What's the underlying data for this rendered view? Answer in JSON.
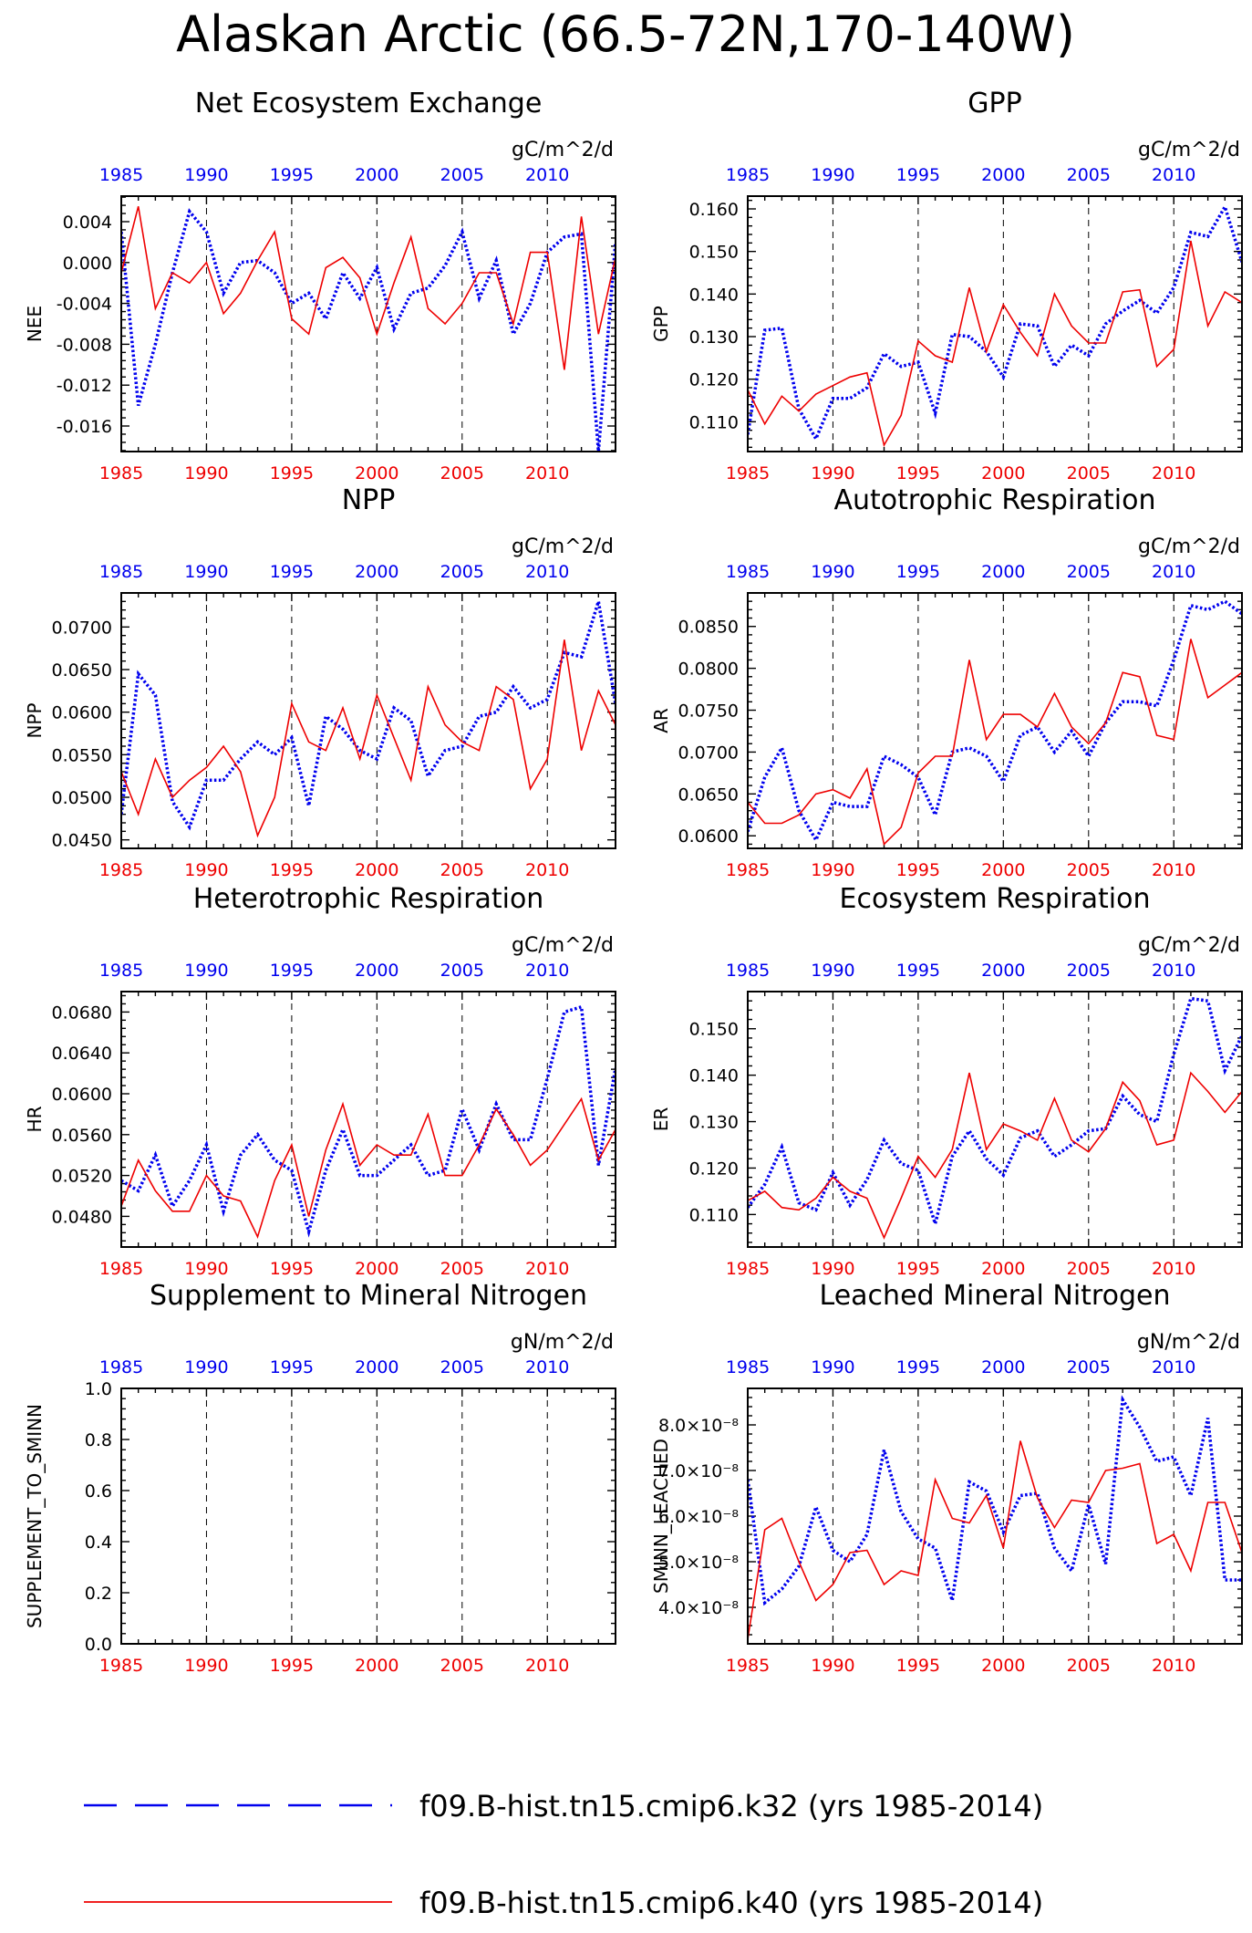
{
  "title": "Alaskan Arctic (66.5-72N,170-140W)",
  "colors": {
    "k32": "#0000ee",
    "k40": "#ee0000",
    "axis": "#000000"
  },
  "legend": [
    {
      "label": "f09.B-hist.tn15.cmip6.k32 (yrs 1985-2014)",
      "color": "#0000ee",
      "style": "dashed"
    },
    {
      "label": "f09.B-hist.tn15.cmip6.k40 (yrs 1985-2014)",
      "color": "#ee0000",
      "style": "solid"
    }
  ],
  "chart_data": [
    {
      "type": "line",
      "title": "Net Ecosystem Exchange",
      "units": "gC/m^2/d",
      "ylabel": "NEE",
      "ylim": [
        -0.0185,
        0.0065
      ],
      "yticks": [
        0.004,
        0.0,
        -0.004,
        -0.008,
        -0.012,
        -0.016
      ],
      "ytick_labels": [
        "0.004",
        "0.000",
        "-0.004",
        "-0.008",
        "-0.012",
        "-0.016"
      ],
      "xlim": [
        1985,
        2014
      ],
      "xticks": [
        1985,
        1990,
        1995,
        2000,
        2005,
        2010
      ],
      "x": [
        1985,
        1986,
        1987,
        1988,
        1989,
        1990,
        1991,
        1992,
        1993,
        1994,
        1995,
        1996,
        1997,
        1998,
        1999,
        2000,
        2001,
        2002,
        2003,
        2004,
        2005,
        2006,
        2007,
        2008,
        2009,
        2010,
        2011,
        2012,
        2013,
        2014
      ],
      "series": [
        {
          "key": "k32",
          "values": [
            0.003,
            -0.014,
            -0.008,
            -0.001,
            0.005,
            0.003,
            -0.003,
            0.0,
            0.0002,
            -0.001,
            -0.004,
            -0.003,
            -0.0055,
            -0.001,
            -0.0035,
            -0.0005,
            -0.0065,
            -0.003,
            -0.0025,
            -0.0003,
            0.003,
            -0.0035,
            0.0002,
            -0.007,
            -0.004,
            0.001,
            0.0025,
            0.0028,
            -0.0185,
            0.002
          ]
        },
        {
          "key": "k40",
          "values": [
            -0.001,
            0.0055,
            -0.0045,
            -0.001,
            -0.002,
            0.0,
            -0.005,
            -0.003,
            0.0002,
            0.003,
            -0.0055,
            -0.007,
            -0.0005,
            0.0005,
            -0.0015,
            -0.007,
            -0.002,
            0.0025,
            -0.0045,
            -0.006,
            -0.004,
            -0.001,
            -0.001,
            -0.006,
            0.001,
            0.001,
            -0.0105,
            0.0045,
            -0.007,
            0.0005
          ]
        }
      ]
    },
    {
      "type": "line",
      "title": "GPP",
      "units": "gC/m^2/d",
      "ylabel": "GPP",
      "ylim": [
        0.103,
        0.163
      ],
      "yticks": [
        0.11,
        0.12,
        0.13,
        0.14,
        0.15,
        0.16
      ],
      "ytick_labels": [
        "0.110",
        "0.120",
        "0.130",
        "0.140",
        "0.150",
        "0.160"
      ],
      "xlim": [
        1985,
        2014
      ],
      "xticks": [
        1985,
        1990,
        1995,
        2000,
        2005,
        2010
      ],
      "x": [
        1985,
        1986,
        1987,
        1988,
        1989,
        1990,
        1991,
        1992,
        1993,
        1994,
        1995,
        1996,
        1997,
        1998,
        1999,
        2000,
        2001,
        2002,
        2003,
        2004,
        2005,
        2006,
        2007,
        2008,
        2009,
        2010,
        2011,
        2012,
        2013,
        2014
      ],
      "series": [
        {
          "key": "k32",
          "values": [
            0.107,
            0.1315,
            0.132,
            0.113,
            0.106,
            0.1155,
            0.1155,
            0.118,
            0.126,
            0.123,
            0.124,
            0.112,
            0.1305,
            0.13,
            0.1265,
            0.1205,
            0.133,
            0.1325,
            0.123,
            0.128,
            0.1255,
            0.133,
            0.136,
            0.1385,
            0.1355,
            0.1415,
            0.1545,
            0.1535,
            0.1605,
            0.1475
          ]
        },
        {
          "key": "k40",
          "values": [
            0.1175,
            0.1095,
            0.116,
            0.1125,
            0.1165,
            0.1185,
            0.1205,
            0.1215,
            0.1045,
            0.1115,
            0.129,
            0.1255,
            0.124,
            0.1415,
            0.1265,
            0.1375,
            0.131,
            0.1255,
            0.14,
            0.1325,
            0.1285,
            0.1285,
            0.1405,
            0.141,
            0.123,
            0.127,
            0.1525,
            0.1325,
            0.1405,
            0.138
          ]
        }
      ]
    },
    {
      "type": "line",
      "title": "NPP",
      "units": "gC/m^2/d",
      "ylabel": "NPP",
      "ylim": [
        0.044,
        0.074
      ],
      "yticks": [
        0.045,
        0.05,
        0.055,
        0.06,
        0.065,
        0.07
      ],
      "ytick_labels": [
        "0.0450",
        "0.0500",
        "0.0550",
        "0.0600",
        "0.0650",
        "0.0700"
      ],
      "xlim": [
        1985,
        2014
      ],
      "xticks": [
        1985,
        1990,
        1995,
        2000,
        2005,
        2010
      ],
      "x": [
        1985,
        1986,
        1987,
        1988,
        1989,
        1990,
        1991,
        1992,
        1993,
        1994,
        1995,
        1996,
        1997,
        1998,
        1999,
        2000,
        2001,
        2002,
        2003,
        2004,
        2005,
        2006,
        2007,
        2008,
        2009,
        2010,
        2011,
        2012,
        2013,
        2014
      ],
      "series": [
        {
          "key": "k32",
          "values": [
            0.048,
            0.0645,
            0.062,
            0.0495,
            0.0465,
            0.052,
            0.052,
            0.0545,
            0.0565,
            0.055,
            0.057,
            0.049,
            0.0595,
            0.058,
            0.0555,
            0.0545,
            0.0605,
            0.059,
            0.0525,
            0.0555,
            0.056,
            0.0595,
            0.06,
            0.063,
            0.0605,
            0.0615,
            0.067,
            0.0665,
            0.073,
            0.061
          ]
        },
        {
          "key": "k40",
          "values": [
            0.053,
            0.048,
            0.0545,
            0.05,
            0.052,
            0.0535,
            0.056,
            0.053,
            0.0455,
            0.05,
            0.061,
            0.0565,
            0.0555,
            0.0605,
            0.0545,
            0.062,
            0.057,
            0.052,
            0.063,
            0.0585,
            0.0565,
            0.0555,
            0.063,
            0.0615,
            0.051,
            0.0545,
            0.0685,
            0.0555,
            0.0625,
            0.0585
          ]
        }
      ]
    },
    {
      "type": "line",
      "title": "Autotrophic Respiration",
      "units": "gC/m^2/d",
      "ylabel": "AR",
      "ylim": [
        0.0585,
        0.089
      ],
      "yticks": [
        0.06,
        0.065,
        0.07,
        0.075,
        0.08,
        0.085
      ],
      "ytick_labels": [
        "0.0600",
        "0.0650",
        "0.0700",
        "0.0750",
        "0.0800",
        "0.0850"
      ],
      "xlim": [
        1985,
        2014
      ],
      "xticks": [
        1985,
        1990,
        1995,
        2000,
        2005,
        2010
      ],
      "x": [
        1985,
        1986,
        1987,
        1988,
        1989,
        1990,
        1991,
        1992,
        1993,
        1994,
        1995,
        1996,
        1997,
        1998,
        1999,
        2000,
        2001,
        2002,
        2003,
        2004,
        2005,
        2006,
        2007,
        2008,
        2009,
        2010,
        2011,
        2012,
        2013,
        2014
      ],
      "series": [
        {
          "key": "k32",
          "values": [
            0.0605,
            0.067,
            0.0705,
            0.063,
            0.0595,
            0.064,
            0.0635,
            0.0635,
            0.0695,
            0.0685,
            0.067,
            0.0625,
            0.07,
            0.0705,
            0.0695,
            0.0665,
            0.072,
            0.073,
            0.07,
            0.0725,
            0.0695,
            0.0735,
            0.076,
            0.076,
            0.0755,
            0.081,
            0.0875,
            0.087,
            0.088,
            0.0865
          ]
        },
        {
          "key": "k40",
          "values": [
            0.064,
            0.0615,
            0.0615,
            0.0625,
            0.065,
            0.0655,
            0.0645,
            0.068,
            0.059,
            0.061,
            0.0675,
            0.0695,
            0.0695,
            0.081,
            0.0715,
            0.0745,
            0.0745,
            0.073,
            0.077,
            0.073,
            0.071,
            0.0735,
            0.0795,
            0.079,
            0.072,
            0.0715,
            0.0835,
            0.0765,
            0.078,
            0.0795
          ]
        }
      ]
    },
    {
      "type": "line",
      "title": "Heterotrophic Respiration",
      "units": "gC/m^2/d",
      "ylabel": "HR",
      "ylim": [
        0.045,
        0.07
      ],
      "yticks": [
        0.048,
        0.052,
        0.056,
        0.06,
        0.064,
        0.068
      ],
      "ytick_labels": [
        "0.0480",
        "0.0520",
        "0.0560",
        "0.0600",
        "0.0640",
        "0.0680"
      ],
      "xlim": [
        1985,
        2014
      ],
      "xticks": [
        1985,
        1990,
        1995,
        2000,
        2005,
        2010
      ],
      "x": [
        1985,
        1986,
        1987,
        1988,
        1989,
        1990,
        1991,
        1992,
        1993,
        1994,
        1995,
        1996,
        1997,
        1998,
        1999,
        2000,
        2001,
        2002,
        2003,
        2004,
        2005,
        2006,
        2007,
        2008,
        2009,
        2010,
        2011,
        2012,
        2013,
        2014
      ],
      "series": [
        {
          "key": "k32",
          "values": [
            0.0515,
            0.0505,
            0.054,
            0.049,
            0.0515,
            0.055,
            0.0485,
            0.054,
            0.056,
            0.0535,
            0.0525,
            0.0465,
            0.0525,
            0.0565,
            0.052,
            0.052,
            0.0535,
            0.055,
            0.052,
            0.0525,
            0.0585,
            0.0545,
            0.059,
            0.0555,
            0.0555,
            0.0615,
            0.068,
            0.0685,
            0.053,
            0.0625
          ]
        },
        {
          "key": "k40",
          "values": [
            0.049,
            0.0535,
            0.0505,
            0.0485,
            0.0485,
            0.052,
            0.05,
            0.0495,
            0.046,
            0.0515,
            0.055,
            0.048,
            0.0545,
            0.059,
            0.053,
            0.055,
            0.054,
            0.054,
            0.058,
            0.052,
            0.052,
            0.055,
            0.0585,
            0.056,
            0.053,
            0.0545,
            0.057,
            0.0595,
            0.0535,
            0.0565
          ]
        }
      ]
    },
    {
      "type": "line",
      "title": "Ecosystem Respiration",
      "units": "gC/m^2/d",
      "ylabel": "ER",
      "ylim": [
        0.103,
        0.158
      ],
      "yticks": [
        0.11,
        0.12,
        0.13,
        0.14,
        0.15
      ],
      "ytick_labels": [
        "0.110",
        "0.120",
        "0.130",
        "0.140",
        "0.150"
      ],
      "xlim": [
        1985,
        2014
      ],
      "xticks": [
        1985,
        1990,
        1995,
        2000,
        2005,
        2010
      ],
      "x": [
        1985,
        1986,
        1987,
        1988,
        1989,
        1990,
        1991,
        1992,
        1993,
        1994,
        1995,
        1996,
        1997,
        1998,
        1999,
        2000,
        2001,
        2002,
        2003,
        2004,
        2005,
        2006,
        2007,
        2008,
        2009,
        2010,
        2011,
        2012,
        2013,
        2014
      ],
      "series": [
        {
          "key": "k32",
          "values": [
            0.1115,
            0.1165,
            0.1245,
            0.1125,
            0.111,
            0.119,
            0.112,
            0.1175,
            0.126,
            0.121,
            0.1195,
            0.108,
            0.1225,
            0.128,
            0.122,
            0.1185,
            0.1265,
            0.128,
            0.1225,
            0.125,
            0.128,
            0.1285,
            0.1355,
            0.1315,
            0.13,
            0.1445,
            0.1565,
            0.156,
            0.141,
            0.1485
          ]
        },
        {
          "key": "k40",
          "values": [
            0.113,
            0.115,
            0.1115,
            0.111,
            0.1135,
            0.118,
            0.115,
            0.1135,
            0.105,
            0.1135,
            0.1225,
            0.118,
            0.124,
            0.1405,
            0.124,
            0.1295,
            0.128,
            0.126,
            0.135,
            0.126,
            0.1235,
            0.1285,
            0.1385,
            0.1345,
            0.125,
            0.126,
            0.1405,
            0.1365,
            0.132,
            0.1365
          ]
        }
      ]
    },
    {
      "type": "line",
      "title": "Supplement to Mineral Nitrogen",
      "units": "gN/m^2/d",
      "ylabel": "SUPPLEMENT_TO_SMINN",
      "ylim": [
        0.0,
        1.0
      ],
      "yticks": [
        0.0,
        0.2,
        0.4,
        0.6,
        0.8,
        1.0
      ],
      "ytick_labels": [
        "0.0",
        "0.2",
        "0.4",
        "0.6",
        "0.8",
        "1.0"
      ],
      "xlim": [
        1985,
        2014
      ],
      "xticks": [
        1985,
        1990,
        1995,
        2000,
        2005,
        2010
      ],
      "x": [],
      "series": []
    },
    {
      "type": "line",
      "title": "Leached Mineral Nitrogen",
      "units": "gN/m^2/d",
      "ylabel": "SMINN_LEACHED",
      "ylim": [
        3.2e-08,
        8.8e-08
      ],
      "yticks": [
        4e-08,
        5e-08,
        6e-08,
        7e-08,
        8e-08
      ],
      "ytick_labels": [
        "4.0×10⁻⁸",
        "5.0×10⁻⁸",
        "6.0×10⁻⁸",
        "7.0×10⁻⁸",
        "8.0×10⁻⁸"
      ],
      "xlim": [
        1985,
        2014
      ],
      "xticks": [
        1985,
        1990,
        1995,
        2000,
        2005,
        2010
      ],
      "x": [
        1985,
        1986,
        1987,
        1988,
        1989,
        1990,
        1991,
        1992,
        1993,
        1994,
        1995,
        1996,
        1997,
        1998,
        1999,
        2000,
        2001,
        2002,
        2003,
        2004,
        2005,
        2006,
        2007,
        2008,
        2009,
        2010,
        2011,
        2012,
        2013,
        2014
      ],
      "series": [
        {
          "key": "k32",
          "values": [
            6.8e-08,
            4.1e-08,
            4.4e-08,
            4.9e-08,
            6.2e-08,
            5.25e-08,
            5e-08,
            5.6e-08,
            7.45e-08,
            6.1e-08,
            5.5e-08,
            5.3e-08,
            4.15e-08,
            6.75e-08,
            6.55e-08,
            5.65e-08,
            6.45e-08,
            6.5e-08,
            5.3e-08,
            4.8e-08,
            6.25e-08,
            4.95e-08,
            8.55e-08,
            7.95e-08,
            7.2e-08,
            7.3e-08,
            6.45e-08,
            8.15e-08,
            4.6e-08,
            4.6e-08
          ]
        },
        {
          "key": "k40",
          "values": [
            3.3e-08,
            5.7e-08,
            5.95e-08,
            5e-08,
            4.15e-08,
            4.5e-08,
            5.2e-08,
            5.25e-08,
            4.5e-08,
            4.8e-08,
            4.7e-08,
            6.8e-08,
            5.95e-08,
            5.85e-08,
            6.45e-08,
            5.3e-08,
            7.65e-08,
            6.4e-08,
            5.75e-08,
            6.35e-08,
            6.3e-08,
            7e-08,
            7.05e-08,
            7.15e-08,
            5.4e-08,
            5.6e-08,
            4.8e-08,
            6.3e-08,
            6.3e-08,
            5.2e-08
          ]
        }
      ]
    }
  ]
}
